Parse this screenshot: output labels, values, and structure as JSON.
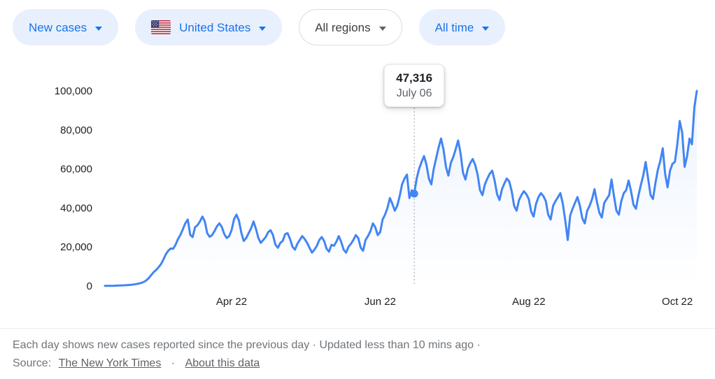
{
  "filters": {
    "metric": {
      "label": "New cases"
    },
    "country": {
      "label": "United States",
      "flag_icon": "us-flag-icon"
    },
    "region": {
      "label": "All regions"
    },
    "time": {
      "label": "All time"
    }
  },
  "tooltip": {
    "value": "47,316",
    "date": "July 06"
  },
  "chart_data": {
    "type": "line",
    "series_name": "New cases",
    "region": "United States",
    "line_color": "#4285f4",
    "grid": false,
    "legend": false,
    "ylim": [
      0,
      100000
    ],
    "y_ticks": [
      {
        "label": "0",
        "value": 0
      },
      {
        "label": "20,000",
        "value": 20000
      },
      {
        "label": "40,000",
        "value": 40000
      },
      {
        "label": "60,000",
        "value": 60000
      },
      {
        "label": "80,000",
        "value": 80000
      },
      {
        "label": "100,000",
        "value": 100000
      }
    ],
    "x_ticks": [
      {
        "label": "Apr 22",
        "day_index": 52
      },
      {
        "label": "Jun 22",
        "day_index": 113
      },
      {
        "label": "Aug 22",
        "day_index": 174
      },
      {
        "label": "Oct 22",
        "day_index": 235
      }
    ],
    "highlight": {
      "day_index": 127,
      "value": 47316,
      "label_value": "47,316",
      "label_date": "July 06"
    },
    "values": [
      70,
      80,
      95,
      120,
      160,
      210,
      260,
      310,
      360,
      430,
      520,
      640,
      820,
      1050,
      1300,
      1600,
      2100,
      2900,
      4100,
      5600,
      7100,
      8200,
      9600,
      11200,
      13600,
      16200,
      18100,
      19200,
      19100,
      21200,
      24100,
      26200,
      29100,
      32200,
      34100,
      26200,
      25100,
      30100,
      31200,
      33100,
      35600,
      33200,
      27100,
      25200,
      26100,
      28200,
      30600,
      32100,
      30200,
      26600,
      24600,
      25600,
      28600,
      34200,
      36600,
      33600,
      27200,
      23100,
      24600,
      27100,
      29600,
      33100,
      29200,
      24600,
      22100,
      23600,
      25100,
      27600,
      28600,
      26100,
      21100,
      19600,
      22100,
      23100,
      26600,
      27100,
      24100,
      20100,
      18600,
      21600,
      23600,
      25600,
      24100,
      22100,
      19600,
      17100,
      18600,
      20600,
      23600,
      25100,
      23100,
      19100,
      17600,
      21100,
      20600,
      22600,
      25600,
      22600,
      18600,
      17100,
      20100,
      21600,
      23600,
      26100,
      24600,
      19600,
      18100,
      23600,
      25600,
      28100,
      32100,
      30100,
      26100,
      27600,
      34100,
      36600,
      40100,
      45100,
      42100,
      38600,
      41100,
      46100,
      52100,
      55100,
      57100,
      45100,
      49100,
      47316,
      55100,
      60100,
      63600,
      66600,
      62100,
      55100,
      52100,
      60100,
      65600,
      71100,
      75600,
      70100,
      61100,
      56600,
      63100,
      66100,
      70100,
      74600,
      68100,
      58100,
      54600,
      60100,
      63100,
      65100,
      62100,
      57100,
      49100,
      46600,
      52100,
      55100,
      57600,
      59100,
      54100,
      47100,
      44100,
      49600,
      52600,
      55100,
      53600,
      48600,
      41100,
      38600,
      44100,
      46600,
      48600,
      47100,
      44600,
      38100,
      35600,
      42100,
      45600,
      47600,
      46100,
      43600,
      36600,
      34100,
      41100,
      43600,
      45600,
      47600,
      42100,
      33600,
      23600,
      36100,
      39600,
      42600,
      45600,
      41100,
      34600,
      32100,
      38600,
      41100,
      44600,
      49600,
      43100,
      37600,
      35100,
      42600,
      44600,
      46600,
      54600,
      46100,
      38600,
      36600,
      43600,
      47600,
      49100,
      54100,
      48600,
      41600,
      39600,
      46100,
      51600,
      56600,
      63600,
      55100,
      46600,
      44600,
      52600,
      59600,
      64100,
      70600,
      57600,
      50600,
      59100,
      62600,
      63600,
      72600,
      84600,
      78600,
      61100,
      66600,
      75600,
      72600,
      91600,
      100000
    ]
  },
  "footer": {
    "line1": "Each day shows new cases reported since the previous day · Updated less than 10 mins ago  ·",
    "source_label": "Source:",
    "source_link": "The New York Times",
    "separator": "·",
    "about_link": "About this data"
  }
}
